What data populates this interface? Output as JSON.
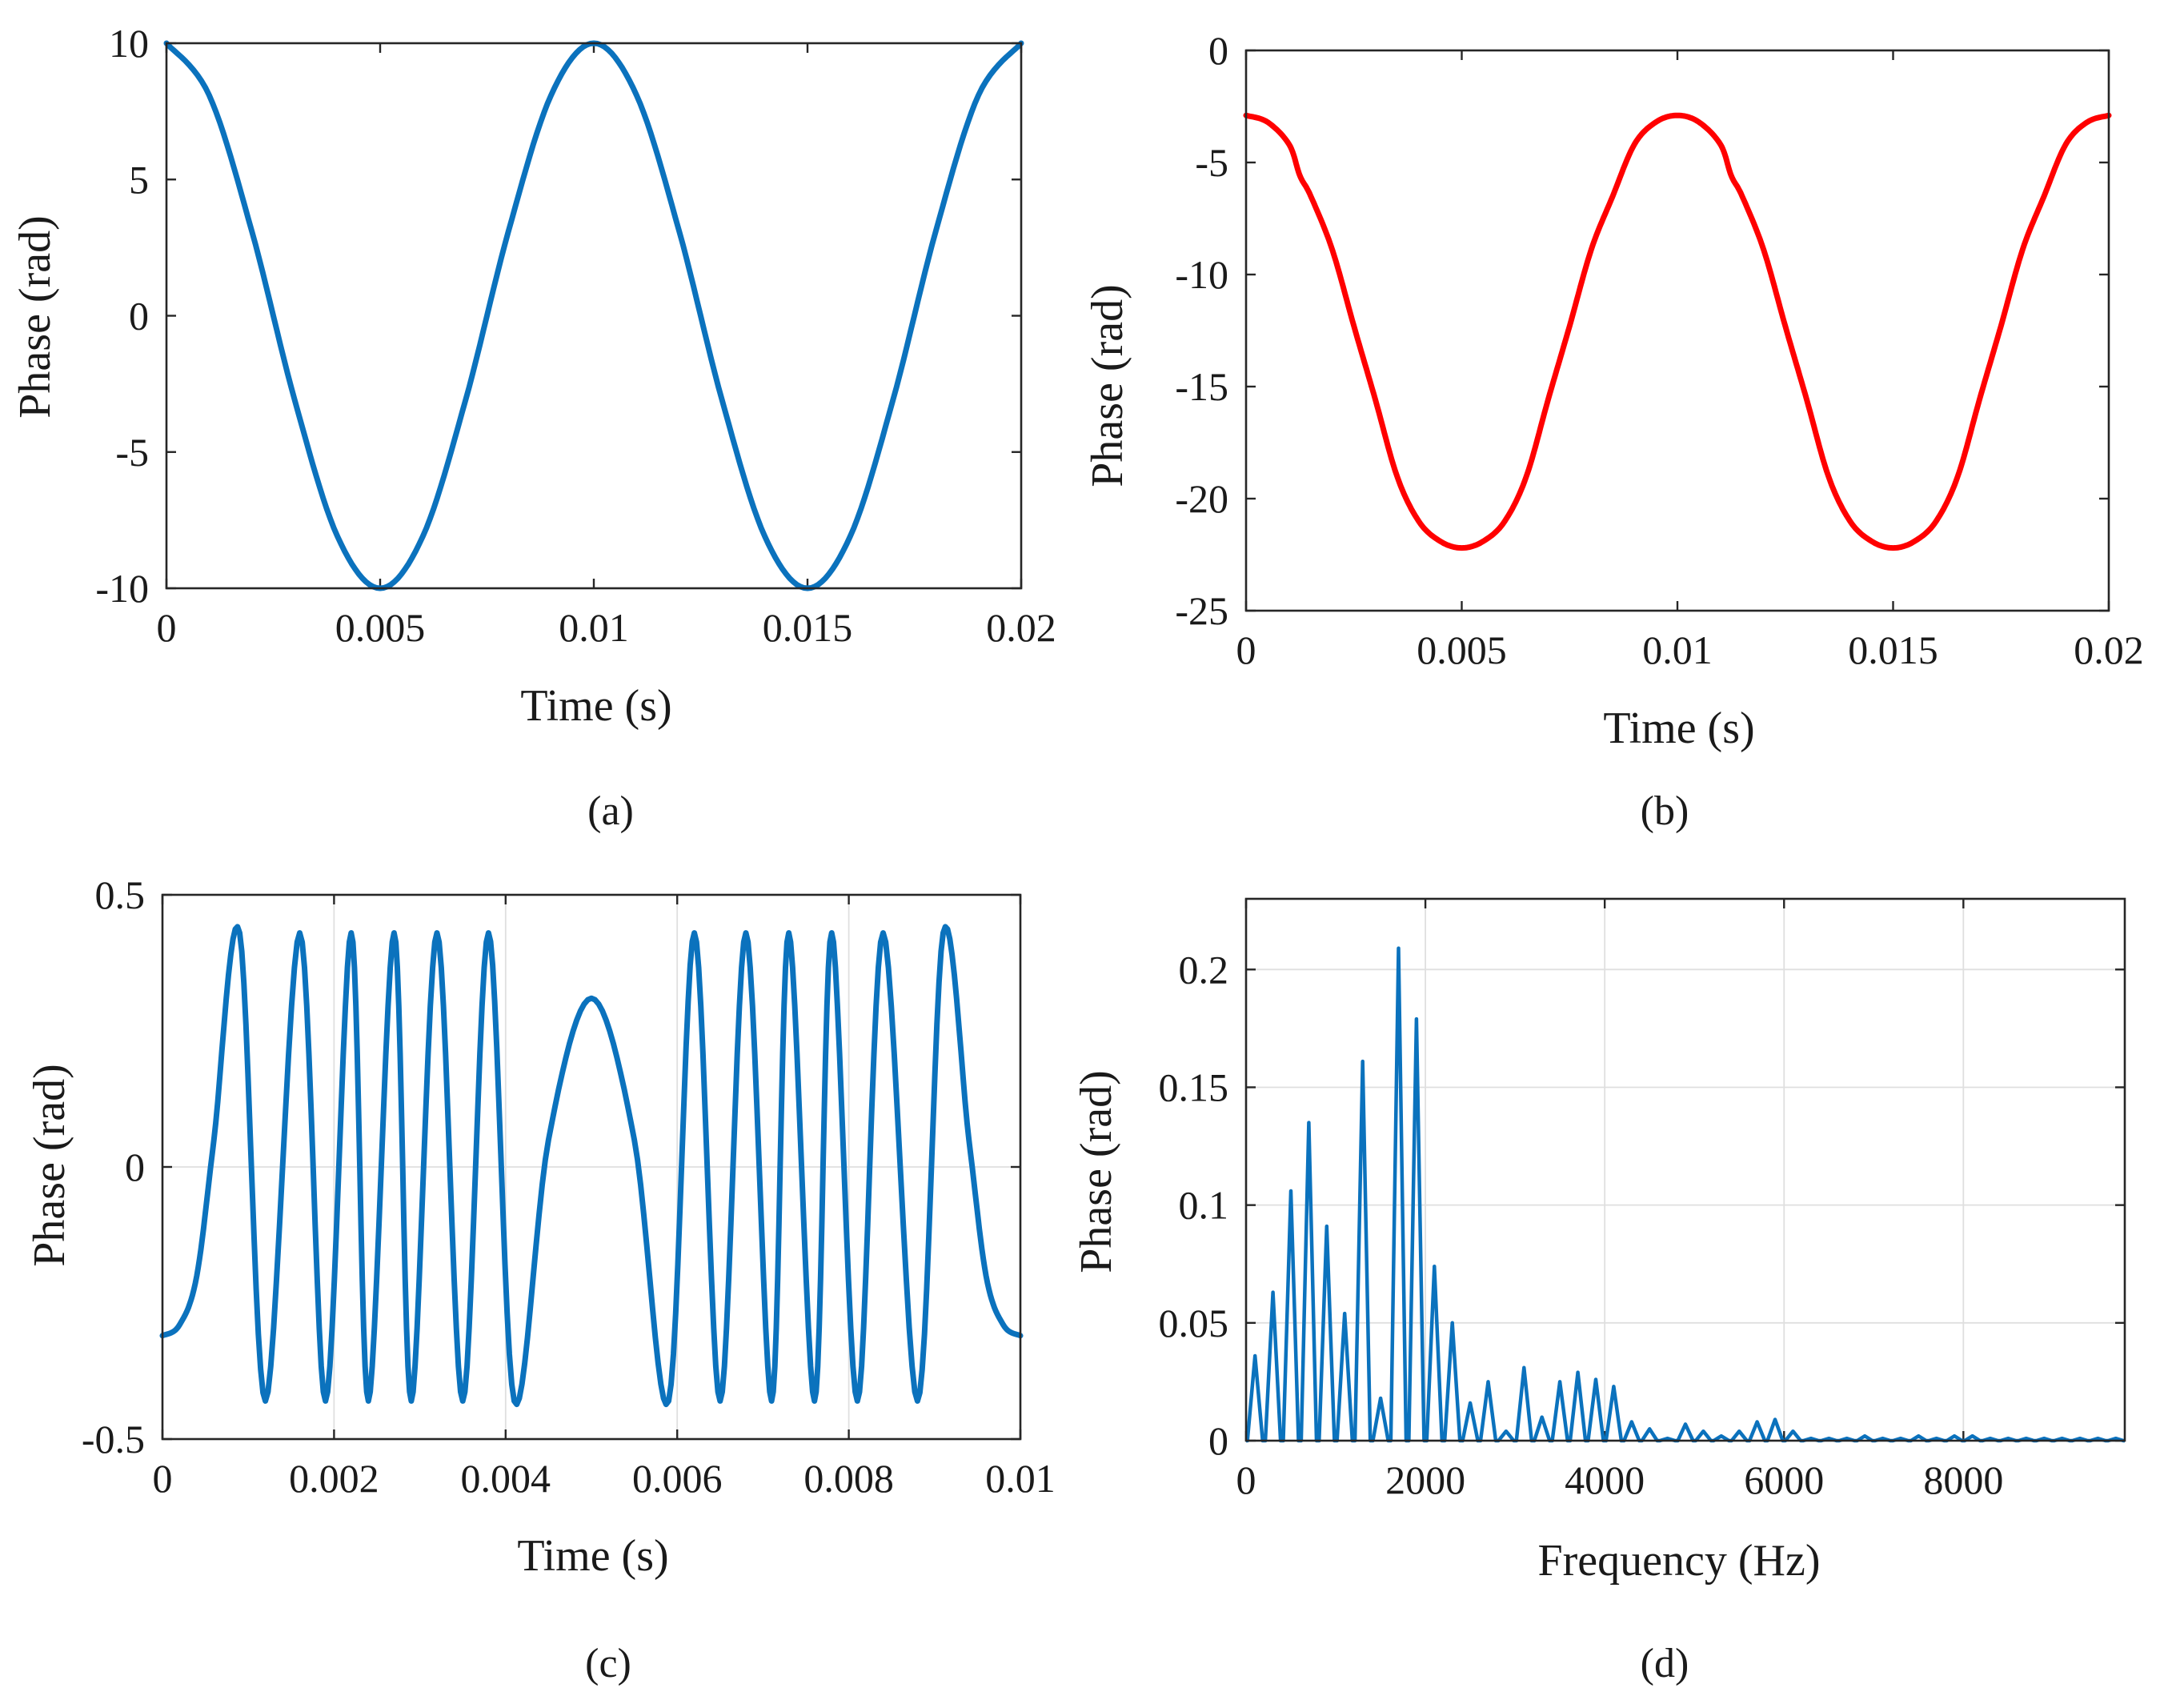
{
  "colors": {
    "blue": "#0b72bd",
    "red": "#ff0000"
  },
  "panels": [
    {
      "caption": "(a)",
      "chart_data": {
        "type": "line",
        "xlabel": "Time (s)",
        "ylabel": "Phase (rad)",
        "xlim": [
          0,
          0.02
        ],
        "ylim": [
          -10,
          10
        ],
        "x_ticks": [
          0,
          0.005,
          0.01,
          0.015,
          0.02
        ],
        "x_tick_labels": [
          "0",
          "0.005",
          "0.01",
          "0.015",
          "0.02"
        ],
        "y_ticks": [
          -10,
          -5,
          0,
          5,
          10
        ],
        "y_tick_labels": [
          "-10",
          "-5",
          "0",
          "5",
          "10"
        ],
        "grid": false,
        "series": [
          {
            "color": "#0b72bd",
            "x": [
              0,
              0.001,
              0.002,
              0.003,
              0.004,
              0.005,
              0.006,
              0.007,
              0.008,
              0.009,
              0.01,
              0.011,
              0.012,
              0.013,
              0.014,
              0.015,
              0.016,
              0.017,
              0.018,
              0.019,
              0.02
            ],
            "y": [
              10,
              8.09,
              3.09,
              -3.09,
              -8.09,
              -10,
              -8.09,
              -3.09,
              3.09,
              8.09,
              10,
              8.09,
              3.09,
              -3.09,
              -8.09,
              -10,
              -8.09,
              -3.09,
              3.09,
              8.09,
              10
            ]
          }
        ]
      }
    },
    {
      "caption": "(b)",
      "chart_data": {
        "type": "line",
        "xlabel": "Time (s)",
        "ylabel": "Phase (rad)",
        "xlim": [
          0,
          0.02
        ],
        "ylim": [
          -25,
          0
        ],
        "x_ticks": [
          0,
          0.005,
          0.01,
          0.015,
          0.02
        ],
        "x_tick_labels": [
          "0",
          "0.005",
          "0.01",
          "0.015",
          "0.02"
        ],
        "y_ticks": [
          -25,
          -20,
          -15,
          -10,
          -5,
          0
        ],
        "y_tick_labels": [
          "-25",
          "-20",
          "-15",
          "-10",
          "-5",
          "0"
        ],
        "grid": false,
        "series": [
          {
            "color": "#ff0000",
            "x": [
              0,
              0.0005,
              0.001,
              0.00125,
              0.0015,
              0.002,
              0.0025,
              0.003,
              0.0035,
              0.004,
              0.0045,
              0.005,
              0.0055,
              0.006,
              0.0065,
              0.007,
              0.0075,
              0.008,
              0.0085,
              0.009,
              0.0095,
              0.01,
              0.0105,
              0.011,
              0.01125,
              0.0115,
              0.012,
              0.0125,
              0.013,
              0.0135,
              0.014,
              0.0145,
              0.015,
              0.0155,
              0.016,
              0.0165,
              0.017,
              0.0175,
              0.018,
              0.0185,
              0.019,
              0.0195,
              0.02
            ],
            "y": [
              -2.9,
              -3.2,
              -4.2,
              -5.6,
              -6.5,
              -8.9,
              -12.3,
              -15.6,
              -19.0,
              -21.0,
              -21.9,
              -22.2,
              -21.9,
              -21.0,
              -19.0,
              -15.6,
              -12.3,
              -8.9,
              -6.5,
              -4.2,
              -3.2,
              -2.9,
              -3.2,
              -4.2,
              -5.6,
              -6.5,
              -8.9,
              -12.3,
              -15.6,
              -19.0,
              -21.0,
              -21.9,
              -22.2,
              -21.9,
              -21.0,
              -19.0,
              -15.6,
              -12.3,
              -8.9,
              -6.5,
              -4.2,
              -3.2,
              -2.9
            ]
          }
        ]
      }
    },
    {
      "caption": "(c)",
      "chart_data": {
        "type": "line",
        "xlabel": "Time (s)",
        "ylabel": "Phase (rad)",
        "xlim": [
          0,
          0.01
        ],
        "ylim": [
          -0.5,
          0.5
        ],
        "x_ticks": [
          0,
          0.002,
          0.004,
          0.006,
          0.008,
          0.01
        ],
        "x_tick_labels": [
          "0",
          "0.002",
          "0.004",
          "0.006",
          "0.008",
          "0.01"
        ],
        "y_ticks": [
          -0.5,
          0,
          0.5
        ],
        "y_tick_labels": [
          "-0.5",
          "0",
          "0.5"
        ],
        "grid": true,
        "series": [
          {
            "color": "#0b72bd",
            "x": [
              0,
              0.0002,
              0.0004,
              0.0006,
              0.0009,
              0.0012,
              0.0016,
              0.0019,
              0.0022,
              0.0024,
              0.0027,
              0.0029,
              0.0032,
              0.0035,
              0.0038,
              0.0041,
              0.0045,
              0.005,
              0.0055,
              0.0059,
              0.0062,
              0.0065,
              0.0068,
              0.0071,
              0.0073,
              0.0076,
              0.0078,
              0.0081,
              0.0084,
              0.0088,
              0.0091,
              0.0094,
              0.0096,
              0.0098,
              0.01
            ],
            "y": [
              -0.31,
              -0.29,
              -0.2,
              0.05,
              0.43,
              -0.43,
              0.43,
              -0.43,
              0.43,
              -0.43,
              0.43,
              -0.43,
              0.43,
              -0.43,
              0.43,
              -0.43,
              0.05,
              0.31,
              0.05,
              -0.43,
              0.43,
              -0.43,
              0.43,
              -0.43,
              0.43,
              -0.43,
              0.43,
              -0.43,
              0.43,
              -0.43,
              0.43,
              0.05,
              -0.2,
              -0.29,
              -0.31
            ]
          }
        ]
      }
    },
    {
      "caption": "(d)",
      "chart_data": {
        "type": "line",
        "xlabel": "Frequency (Hz)",
        "ylabel": "Phase (rad)",
        "xlim": [
          0,
          9800
        ],
        "ylim": [
          0,
          0.23
        ],
        "x_ticks": [
          0,
          2000,
          4000,
          6000,
          8000
        ],
        "x_tick_labels": [
          "0",
          "2000",
          "4000",
          "6000",
          "8000"
        ],
        "y_ticks": [
          0,
          0.05,
          0.1,
          0.15,
          0.2
        ],
        "y_tick_labels": [
          "0",
          "0.05",
          "0.1",
          "0.15",
          "0.2"
        ],
        "grid": true,
        "series": [
          {
            "color": "#0b72bd",
            "peaks_x": [
              100,
              300,
              500,
              700,
              900,
              1100,
              1300,
              1500,
              1700,
              1900,
              2100,
              2300,
              2500,
              2700,
              2900,
              3100,
              3300,
              3500,
              3700,
              3900,
              4100,
              4300,
              4500,
              4700,
              4900,
              5100,
              5300,
              5500,
              5700,
              5900,
              6100,
              6300,
              6500,
              6700,
              6900,
              7100,
              7300,
              7500,
              7700,
              7900,
              8100,
              8300,
              8500,
              8700,
              8900,
              9100,
              9300,
              9500,
              9700
            ],
            "peaks_y": [
              0.036,
              0.063,
              0.106,
              0.135,
              0.091,
              0.054,
              0.161,
              0.018,
              0.209,
              0.179,
              0.074,
              0.05,
              0.016,
              0.025,
              0.004,
              0.031,
              0.01,
              0.025,
              0.029,
              0.026,
              0.023,
              0.008,
              0.005,
              0.001,
              0.007,
              0.004,
              0.002,
              0.004,
              0.008,
              0.009,
              0.004,
              0.001,
              0.001,
              0.001,
              0.002,
              0.001,
              0.001,
              0.002,
              0.001,
              0.002,
              0.002,
              0.001,
              0.001,
              0.001,
              0.001,
              0.001,
              0.001,
              0.001,
              0.001
            ]
          }
        ]
      }
    }
  ]
}
